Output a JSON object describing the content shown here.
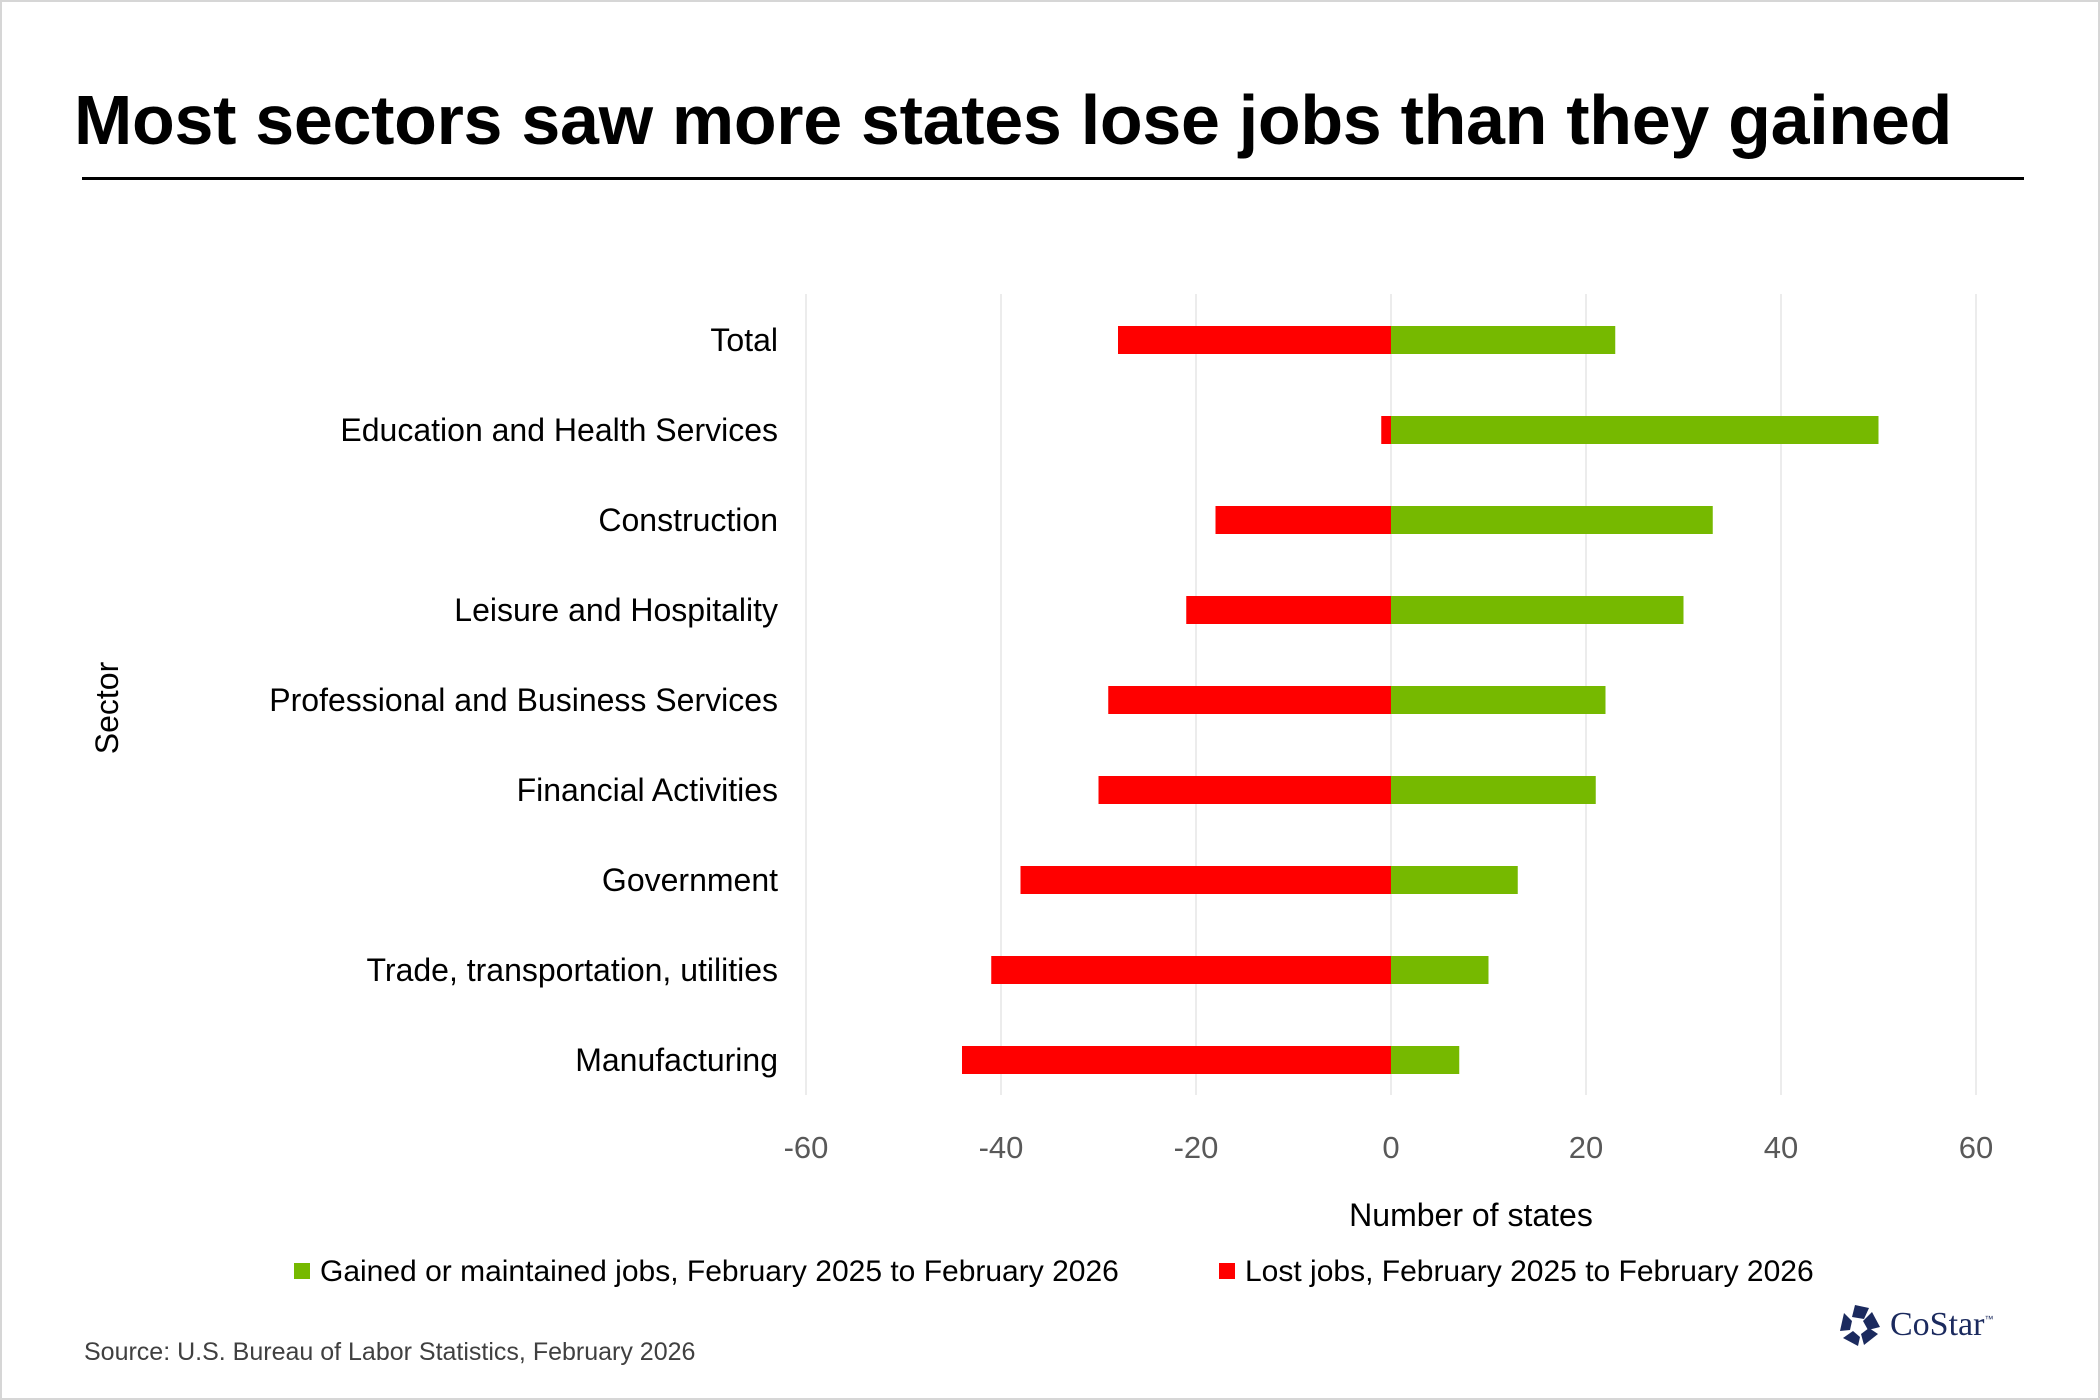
{
  "title": "Most sectors saw more states lose jobs than they gained",
  "source": "Source: U.S. Bureau of Labor Statistics, February 2026",
  "logo": {
    "text": "CoStar",
    "trademark": "™",
    "icon": "costar-star-icon"
  },
  "colors": {
    "gained": "#76b900",
    "lost": "#ff0000",
    "grid": "#e6e6e6",
    "tick_text": "#595959"
  },
  "chart_data": {
    "type": "bar",
    "orientation": "horizontal",
    "stacked": true,
    "categories": [
      "Total",
      "Education and Health Services",
      "Construction",
      "Leisure and Hospitality",
      "Professional and Business Services",
      "Financial Activities",
      "Government",
      "Trade, transportation, utilities",
      "Manufacturing"
    ],
    "series": [
      {
        "name": "Gained or maintained jobs, February 2025 to February 2026",
        "values": [
          23,
          50,
          33,
          30,
          22,
          21,
          13,
          10,
          7
        ]
      },
      {
        "name": "Lost jobs, February 2025 to February 2026",
        "values": [
          -28,
          -1,
          -18,
          -21,
          -29,
          -30,
          -38,
          -41,
          -44
        ]
      }
    ],
    "xlabel": "Number of states",
    "ylabel": "Sector",
    "xlim": [
      -60,
      60
    ],
    "xticks": [
      -60,
      -40,
      -20,
      0,
      20,
      40,
      60
    ],
    "grid": "vertical",
    "legend": "bottom"
  }
}
